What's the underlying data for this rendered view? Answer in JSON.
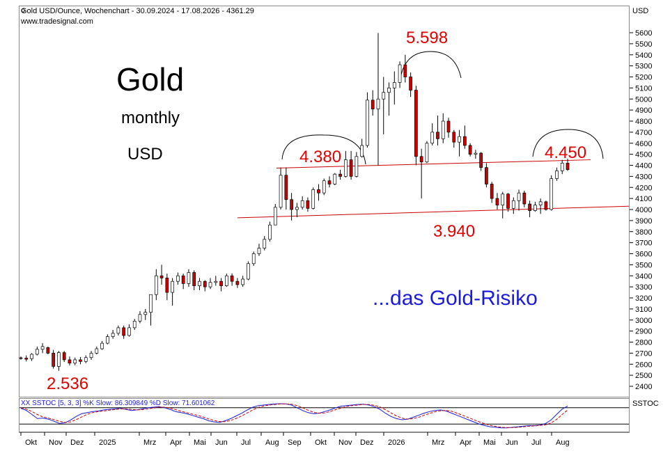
{
  "header": {
    "title": "Gold USD/Ounce, Wochenchart - 30.09.2024 - 17.08.2026 - 4361.29",
    "source": "www.tradesignal.com",
    "price_axis_label": "USD",
    "stoch_axis_label": "SSTOC"
  },
  "annotations": {
    "title": "Gold",
    "period": "monthly",
    "currency": "USD",
    "comment": "...das Gold-Risiko",
    "low_label": "2.536",
    "left_shoulder_label": "4.380",
    "peak_label": "5.598",
    "right_shoulder_label": "4.450",
    "neckline_label": "3.940"
  },
  "colors": {
    "up": "#ffffff",
    "down": "#cc0000",
    "annotation": "#e00000",
    "comment": "#1a1adf",
    "stoch_k": "#1a1adf",
    "stoch_d": "#cc0000"
  },
  "chart_data": {
    "type": "candlestick",
    "title": "Gold USD/Ounce, Wochenchart",
    "ylabel": "USD",
    "ylim": [
      2300,
      5750
    ],
    "y_ticks": [
      2400,
      2500,
      2600,
      2700,
      2800,
      2900,
      3000,
      3100,
      3200,
      3300,
      3400,
      3500,
      3600,
      3700,
      3800,
      3900,
      4000,
      4100,
      4200,
      4300,
      4400,
      4500,
      4600,
      4700,
      4800,
      4900,
      5000,
      5100,
      5200,
      5300,
      5400,
      5500,
      5600
    ],
    "x_labels": [
      "Okt",
      "Nov",
      "Dez",
      "2025",
      "Mrz",
      "Apr",
      "Mai",
      "Jun",
      "Jul",
      "Aug",
      "Sep",
      "Okt",
      "Nov",
      "Dez",
      "2026",
      "Mrz",
      "Apr",
      "Mai",
      "Jun",
      "Jul",
      "Aug"
    ],
    "candles": [
      [
        2658,
        2670,
        2640,
        2655
      ],
      [
        2655,
        2680,
        2625,
        2645
      ],
      [
        2650,
        2700,
        2630,
        2690
      ],
      [
        2690,
        2760,
        2680,
        2735
      ],
      [
        2735,
        2790,
        2700,
        2760
      ],
      [
        2750,
        2760,
        2690,
        2700
      ],
      [
        2700,
        2730,
        2560,
        2580
      ],
      [
        2580,
        2720,
        2540,
        2705
      ],
      [
        2705,
        2720,
        2620,
        2640
      ],
      [
        2640,
        2670,
        2590,
        2610
      ],
      [
        2610,
        2660,
        2590,
        2640
      ],
      [
        2640,
        2665,
        2600,
        2625
      ],
      [
        2625,
        2680,
        2610,
        2660
      ],
      [
        2660,
        2720,
        2640,
        2700
      ],
      [
        2700,
        2760,
        2690,
        2740
      ],
      [
        2740,
        2810,
        2730,
        2790
      ],
      [
        2790,
        2870,
        2780,
        2850
      ],
      [
        2850,
        2910,
        2830,
        2880
      ],
      [
        2880,
        2950,
        2860,
        2930
      ],
      [
        2930,
        2950,
        2830,
        2860
      ],
      [
        2860,
        2960,
        2850,
        2930
      ],
      [
        2930,
        3010,
        2910,
        2990
      ],
      [
        2990,
        3080,
        2970,
        3050
      ],
      [
        3050,
        3100,
        3000,
        3070
      ],
      [
        3070,
        3200,
        2950,
        3230
      ],
      [
        3230,
        3460,
        3180,
        3400
      ],
      [
        3400,
        3500,
        3320,
        3380
      ],
      [
        3380,
        3420,
        3180,
        3250
      ],
      [
        3250,
        3380,
        3130,
        3350
      ],
      [
        3350,
        3430,
        3320,
        3400
      ],
      [
        3400,
        3420,
        3280,
        3330
      ],
      [
        3330,
        3460,
        3300,
        3430
      ],
      [
        3430,
        3450,
        3270,
        3310
      ],
      [
        3310,
        3380,
        3270,
        3350
      ],
      [
        3350,
        3360,
        3260,
        3300
      ],
      [
        3300,
        3380,
        3280,
        3340
      ],
      [
        3340,
        3400,
        3310,
        3350
      ],
      [
        3350,
        3380,
        3260,
        3310
      ],
      [
        3310,
        3420,
        3300,
        3400
      ],
      [
        3400,
        3420,
        3310,
        3350
      ],
      [
        3350,
        3380,
        3290,
        3320
      ],
      [
        3320,
        3400,
        3300,
        3370
      ],
      [
        3370,
        3530,
        3360,
        3510
      ],
      [
        3510,
        3620,
        3490,
        3600
      ],
      [
        3600,
        3690,
        3580,
        3650
      ],
      [
        3650,
        3760,
        3630,
        3730
      ],
      [
        3730,
        3890,
        3710,
        3860
      ],
      [
        3860,
        4050,
        3860,
        4020
      ],
      [
        4020,
        4380,
        4000,
        4310
      ],
      [
        4310,
        4380,
        4000,
        4090
      ],
      [
        4090,
        4150,
        3900,
        4000
      ],
      [
        4000,
        4060,
        3930,
        4020
      ],
      [
        4020,
        4120,
        4000,
        4080
      ],
      [
        4080,
        4110,
        3980,
        4010
      ],
      [
        4010,
        4200,
        4000,
        4180
      ],
      [
        4180,
        4230,
        4080,
        4150
      ],
      [
        4150,
        4280,
        4130,
        4260
      ],
      [
        4260,
        4300,
        4200,
        4230
      ],
      [
        4230,
        4330,
        4220,
        4320
      ],
      [
        4320,
        4360,
        4270,
        4300
      ],
      [
        4300,
        4530,
        4290,
        4450
      ],
      [
        4450,
        4530,
        4270,
        4300
      ],
      [
        4300,
        4520,
        4290,
        4480
      ],
      [
        4480,
        4640,
        4470,
        4580
      ],
      [
        4580,
        5060,
        4560,
        4990
      ],
      [
        4990,
        5080,
        4850,
        4910
      ],
      [
        4910,
        5598,
        4400,
        5000
      ],
      [
        5000,
        5200,
        4680,
        5060
      ],
      [
        5060,
        5150,
        4850,
        5100
      ],
      [
        5100,
        5250,
        4950,
        5150
      ],
      [
        5150,
        5340,
        5100,
        5310
      ],
      [
        5310,
        5400,
        5150,
        5200
      ],
      [
        5200,
        5240,
        5020,
        5080
      ],
      [
        5080,
        5120,
        4400,
        4480
      ],
      [
        4480,
        4550,
        4100,
        4430
      ],
      [
        4430,
        4620,
        4420,
        4600
      ],
      [
        4600,
        4780,
        4580,
        4700
      ],
      [
        4700,
        4850,
        4580,
        4640
      ],
      [
        4640,
        4870,
        4600,
        4800
      ],
      [
        4800,
        4830,
        4650,
        4700
      ],
      [
        4700,
        4720,
        4560,
        4610
      ],
      [
        4610,
        4720,
        4480,
        4660
      ],
      [
        4660,
        4760,
        4550,
        4580
      ],
      [
        4580,
        4600,
        4480,
        4500
      ],
      [
        4500,
        4540,
        4460,
        4510
      ],
      [
        4510,
        4520,
        4350,
        4380
      ],
      [
        4380,
        4420,
        4200,
        4230
      ],
      [
        4230,
        4250,
        4060,
        4100
      ],
      [
        4100,
        4150,
        4000,
        4040
      ],
      [
        4040,
        4160,
        3920,
        4140
      ],
      [
        4140,
        4150,
        3980,
        4010
      ],
      [
        4010,
        4110,
        3960,
        4080
      ],
      [
        4080,
        4180,
        3990,
        4150
      ],
      [
        4150,
        4170,
        4020,
        4050
      ],
      [
        4050,
        4080,
        3930,
        3990
      ],
      [
        3990,
        4070,
        3980,
        4040
      ],
      [
        4040,
        4100,
        3960,
        4070
      ],
      [
        4070,
        4080,
        3990,
        4000
      ],
      [
        4000,
        4310,
        3990,
        4280
      ],
      [
        4280,
        4380,
        4260,
        4350
      ],
      [
        4350,
        4450,
        4320,
        4420
      ],
      [
        4420,
        4460,
        4350,
        4361.29
      ]
    ],
    "levels": {
      "low": 2536,
      "left_shoulder": 4380,
      "peak": 5598,
      "right_shoulder": 4450,
      "neckline": 3940
    },
    "stochastic": {
      "label": "XX SSTOC [5, 3, 3] %K Slow: 86.309849 %D Slow: 71.601062",
      "k_last": 86.309849,
      "d_last": 71.601062,
      "k": [
        78,
        70,
        55,
        40,
        42,
        38,
        30,
        22,
        25,
        35,
        48,
        58,
        62,
        66,
        68,
        72,
        74,
        76,
        78,
        74,
        70,
        72,
        76,
        80,
        82,
        84,
        80,
        74,
        66,
        62,
        58,
        52,
        46,
        40,
        32,
        28,
        26,
        32,
        40,
        50,
        60,
        72,
        82,
        88,
        90,
        92,
        94,
        95,
        94,
        90,
        80,
        70,
        62,
        58,
        60,
        66,
        72,
        80,
        86,
        88,
        90,
        92,
        93,
        90,
        84,
        74,
        60,
        48,
        40,
        36,
        38,
        45,
        52,
        60,
        66,
        70,
        72,
        68,
        60,
        52,
        44,
        36,
        28,
        20,
        14,
        10,
        8,
        6,
        6,
        8,
        10,
        12,
        14,
        14,
        16,
        22,
        35,
        55,
        75,
        86.3
      ],
      "d": [
        80,
        75,
        66,
        55,
        46,
        42,
        36,
        30,
        26,
        28,
        36,
        46,
        56,
        62,
        66,
        68,
        71,
        73,
        76,
        76,
        74,
        72,
        73,
        76,
        79,
        82,
        82,
        79,
        73,
        67,
        62,
        57,
        52,
        46,
        39,
        33,
        29,
        29,
        33,
        41,
        50,
        61,
        72,
        81,
        87,
        90,
        92,
        94,
        94,
        93,
        88,
        80,
        71,
        63,
        60,
        61,
        66,
        73,
        79,
        85,
        88,
        90,
        92,
        92,
        89,
        83,
        73,
        61,
        50,
        42,
        38,
        40,
        45,
        52,
        59,
        65,
        69,
        70,
        67,
        60,
        52,
        44,
        36,
        28,
        21,
        15,
        11,
        8,
        7,
        7,
        8,
        10,
        12,
        13,
        15,
        17,
        24,
        37,
        55,
        71.6
      ]
    }
  }
}
